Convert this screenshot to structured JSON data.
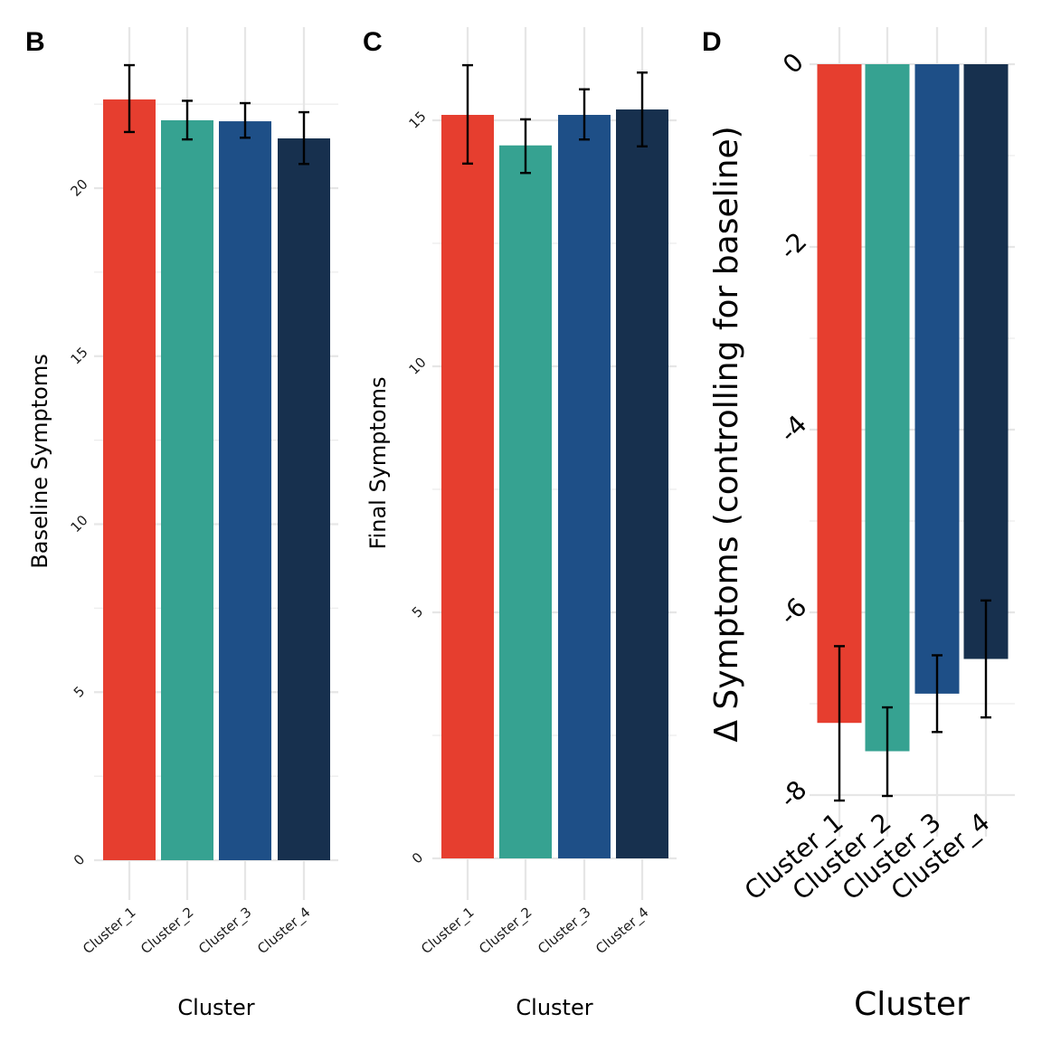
{
  "colors": [
    "#E63E2F",
    "#36A291",
    "#1E4F87",
    "#17304E"
  ],
  "chart_data": [
    {
      "panel": "B",
      "type": "bar",
      "title": "",
      "xlabel": "Cluster",
      "ylabel": "Baseline Symptoms",
      "categories": [
        "Cluster_1",
        "Cluster_2",
        "Cluster_3",
        "Cluster_4"
      ],
      "values": [
        22.64,
        22.02,
        21.99,
        21.48
      ],
      "error_low": [
        21.67,
        21.45,
        21.5,
        20.72
      ],
      "error_high": [
        23.66,
        22.6,
        22.53,
        22.26
      ],
      "ylim": [
        0,
        23.9
      ],
      "yticks": [
        0,
        5,
        10,
        15,
        20
      ],
      "ytick_labels": [
        "0",
        "5",
        "10",
        "15",
        "20"
      ],
      "minor_yticks": [
        2.5,
        7.5,
        12.5,
        17.5,
        22.5
      ],
      "grid": true,
      "legend": "none"
    },
    {
      "panel": "C",
      "type": "bar",
      "title": "",
      "xlabel": "Cluster",
      "ylabel": "Final Symptoms",
      "categories": [
        "Cluster_1",
        "Cluster_2",
        "Cluster_3",
        "Cluster_4"
      ],
      "values": [
        15.11,
        14.49,
        15.11,
        15.22
      ],
      "error_low": [
        14.12,
        13.93,
        14.61,
        14.47
      ],
      "error_high": [
        16.12,
        15.02,
        15.63,
        15.97
      ],
      "ylim": [
        0,
        16.4
      ],
      "yticks": [
        0,
        5,
        10,
        15
      ],
      "ytick_labels": [
        "0",
        "5",
        "10",
        "15"
      ],
      "minor_yticks": [
        2.5,
        7.5,
        12.5
      ],
      "grid": true,
      "legend": "none"
    },
    {
      "panel": "D",
      "type": "bar",
      "title": "",
      "xlabel": "Cluster",
      "ylabel": "Δ Symptoms (controlling for baseline)",
      "categories": [
        "Cluster_1",
        "Cluster_2",
        "Cluster_3",
        "Cluster_4"
      ],
      "values": [
        -7.21,
        -7.52,
        -6.89,
        -6.51
      ],
      "error_low": [
        -8.06,
        -8.01,
        -7.31,
        -7.15
      ],
      "error_high": [
        -6.37,
        -7.04,
        -6.47,
        -5.87
      ],
      "ylim": [
        -8.1,
        0
      ],
      "yticks": [
        0,
        -2,
        -4,
        -6,
        -8
      ],
      "ytick_labels": [
        "0",
        "-2",
        "-4",
        "-6",
        "-8"
      ],
      "minor_yticks": [
        -1,
        -3,
        -5,
        -7
      ],
      "grid": true,
      "legend": "none"
    }
  ]
}
